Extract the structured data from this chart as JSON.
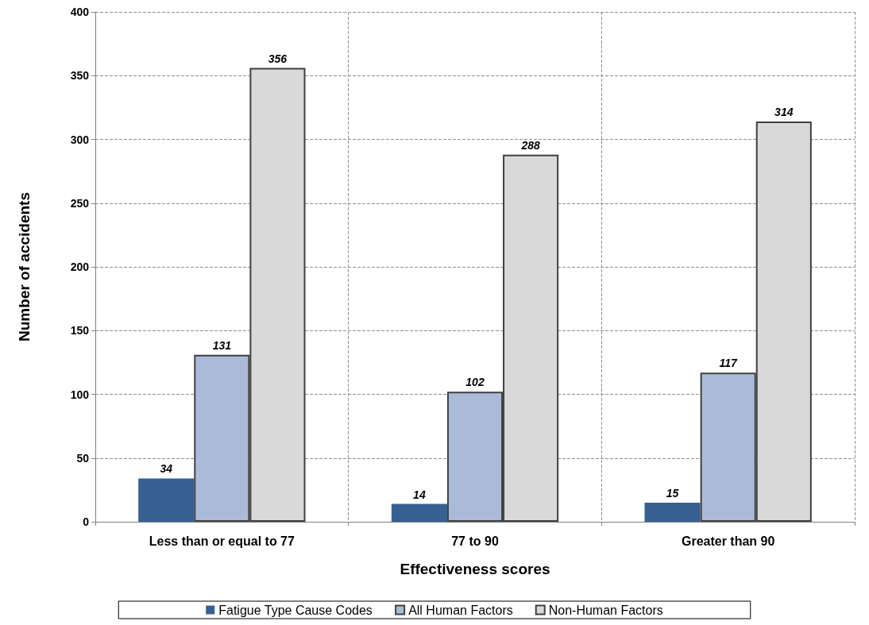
{
  "chart_data": {
    "type": "bar",
    "xlabel": "Effectiveness scores",
    "ylabel": "Number of accidents",
    "categories": [
      "Less than or equal to 77",
      "77 to 90",
      "Greater than 90"
    ],
    "series": [
      {
        "name": "Fatigue Type Cause Codes",
        "color": "#376092",
        "values": [
          34,
          14,
          15
        ]
      },
      {
        "name": "All Human Factors",
        "color": "#a9bbd9",
        "values": [
          131,
          102,
          117
        ]
      },
      {
        "name": "Non-Human Factors",
        "color": "#d9d9d9",
        "values": [
          356,
          288,
          314
        ]
      }
    ],
    "ylim": [
      0,
      400
    ],
    "yticks": [
      0,
      50,
      100,
      150,
      200,
      250,
      300,
      350,
      400
    ],
    "grid": true,
    "legend": "bottom",
    "data_labels": true
  }
}
